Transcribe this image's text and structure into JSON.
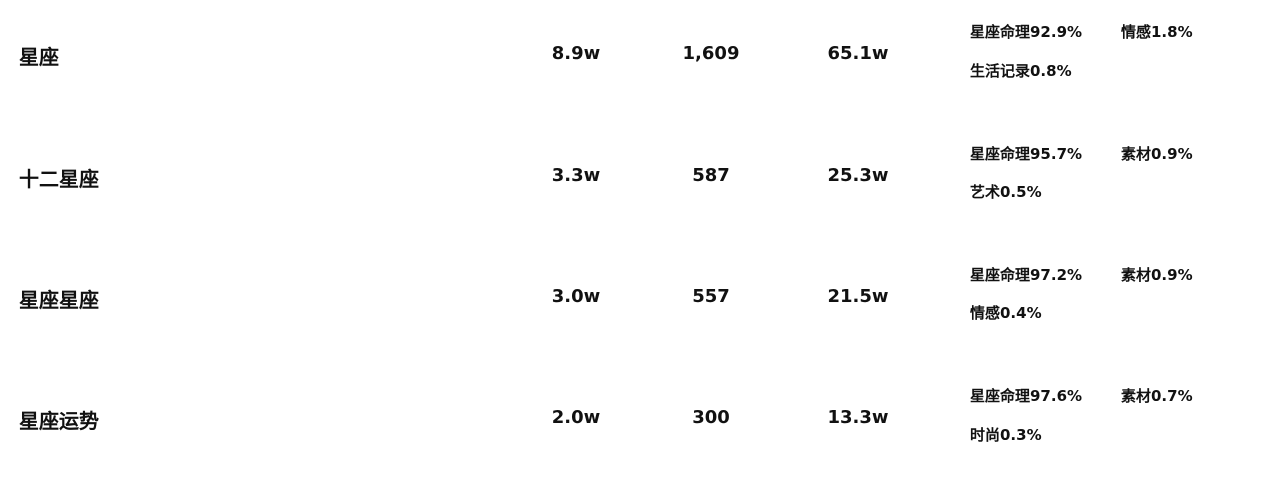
{
  "rows": [
    {
      "keyword": "星座",
      "value_a": "8.9w",
      "value_b": "1,609",
      "value_c": "65.1w",
      "categories": [
        "星座命理92.9%",
        "情感1.8%",
        "生活记录0.8%"
      ]
    },
    {
      "keyword": "十二星座",
      "value_a": "3.3w",
      "value_b": "587",
      "value_c": "25.3w",
      "categories": [
        "星座命理95.7%",
        "素材0.9%",
        "艺术0.5%"
      ]
    },
    {
      "keyword": "星座星座",
      "value_a": "3.0w",
      "value_b": "557",
      "value_c": "21.5w",
      "categories": [
        "星座命理97.2%",
        "素材0.9%",
        "情感0.4%"
      ]
    },
    {
      "keyword": "星座运势",
      "value_a": "2.0w",
      "value_b": "300",
      "value_c": "13.3w",
      "categories": [
        "星座命理97.6%",
        "素材0.7%",
        "时尚0.3%"
      ]
    }
  ]
}
